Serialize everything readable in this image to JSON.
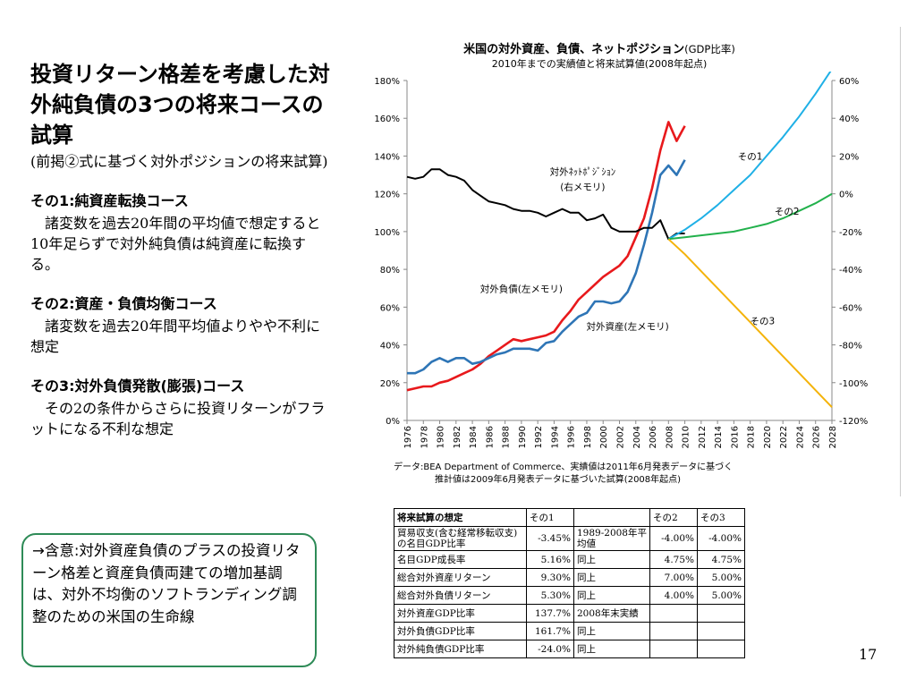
{
  "left": {
    "title": "投資リターン格差を考慮した対外純負債の3つの将来コースの試算",
    "subtitle": "(前掲②式に基づく対外ポジションの将来試算)",
    "courses": [
      {
        "heading": "その1:純資産転換コース",
        "text": "諸変数を過去20年間の平均値で想定すると10年足らずで対外純負債は純資産に転換する。"
      },
      {
        "heading": "その2:資産・負債均衡コース",
        "text": "諸変数を過去20年間平均値よりやや不利に想定"
      },
      {
        "heading": "その3:対外負債発散(膨張)コース",
        "text": "その2の条件からさらに投資リターンがフラットになる不利な想定"
      }
    ],
    "implication": "→含意:対外資産負債のプラスの投資リターン格差と資産負債両建ての増加基調は、対外不均衡のソフトランディング調整のための米国の生命線"
  },
  "chart_title": {
    "main": "米国の対外資産、負債、ネットポジション",
    "main_suffix": "(GDP比率)",
    "sub": "2010年までの実績値と将来試算値(2008年起点)"
  },
  "source": {
    "line1": "データ:BEA Department of Commerce、実績値は2011年6月発表データに基づく",
    "line2": "推計値は2009年6月発表データに基づいた試算(2008年起点)"
  },
  "chart_data": {
    "type": "line",
    "x_range": [
      1976,
      2028
    ],
    "x_ticks": [
      1976,
      1978,
      1980,
      1982,
      1984,
      1986,
      1988,
      1990,
      1992,
      1994,
      1996,
      1998,
      2000,
      2002,
      2004,
      2006,
      2008,
      2010,
      2012,
      2014,
      2016,
      2018,
      2020,
      2022,
      2024,
      2026,
      2028
    ],
    "left_axis": {
      "min": 0,
      "max": 180,
      "ticks": [
        0,
        20,
        40,
        60,
        80,
        100,
        120,
        140,
        160,
        180
      ],
      "unit": "%"
    },
    "right_axis": {
      "min": -120,
      "max": 60,
      "ticks": [
        -120,
        -100,
        -80,
        -60,
        -40,
        -20,
        0,
        20,
        40,
        60
      ],
      "unit": "%"
    },
    "series": [
      {
        "name": "対外負債(左メモリ)",
        "axis": "left",
        "color": "#e8191c",
        "x": [
          1976,
          1977,
          1978,
          1979,
          1980,
          1981,
          1982,
          1983,
          1984,
          1985,
          1986,
          1987,
          1988,
          1989,
          1990,
          1991,
          1992,
          1993,
          1994,
          1995,
          1996,
          1997,
          1998,
          1999,
          2000,
          2001,
          2002,
          2003,
          2004,
          2005,
          2006,
          2007,
          2008,
          2009,
          2010
        ],
        "y": [
          16,
          17,
          18,
          18,
          20,
          21,
          23,
          25,
          27,
          30,
          34,
          37,
          40,
          43,
          42,
          43,
          44,
          45,
          47,
          53,
          58,
          64,
          68,
          72,
          76,
          79,
          82,
          87,
          97,
          107,
          123,
          143,
          158,
          148,
          156
        ]
      },
      {
        "name": "対外資産(左メモリ)",
        "axis": "left",
        "color": "#2e75b6",
        "x": [
          1976,
          1977,
          1978,
          1979,
          1980,
          1981,
          1982,
          1983,
          1984,
          1985,
          1986,
          1987,
          1988,
          1989,
          1990,
          1991,
          1992,
          1993,
          1994,
          1995,
          1996,
          1997,
          1998,
          1999,
          2000,
          2001,
          2002,
          2003,
          2004,
          2005,
          2006,
          2007,
          2008,
          2009,
          2010
        ],
        "y": [
          25,
          25,
          27,
          31,
          33,
          31,
          33,
          33,
          30,
          31,
          33,
          35,
          36,
          38,
          38,
          38,
          37,
          41,
          42,
          47,
          51,
          55,
          57,
          63,
          63,
          62,
          63,
          68,
          78,
          93,
          110,
          130,
          135,
          130,
          138
        ]
      },
      {
        "name": "対外ネットポジション(右メモリ)",
        "axis": "right",
        "color": "#000000",
        "x": [
          1976,
          1977,
          1978,
          1979,
          1980,
          1981,
          1982,
          1983,
          1984,
          1985,
          1986,
          1987,
          1988,
          1989,
          1990,
          1991,
          1992,
          1993,
          1994,
          1995,
          1996,
          1997,
          1998,
          1999,
          2000,
          2001,
          2002,
          2003,
          2004,
          2005,
          2006,
          2007,
          2008,
          2009,
          2010
        ],
        "y": [
          9,
          8,
          9,
          13,
          13,
          10,
          9,
          7,
          2,
          -1,
          -4,
          -5,
          -6,
          -8,
          -9,
          -9,
          -10,
          -12,
          -10,
          -8,
          -10,
          -10,
          -14,
          -13,
          -11,
          -18,
          -20,
          -20,
          -20,
          -18,
          -18,
          -14,
          -24,
          -21,
          -21
        ]
      },
      {
        "name": "その1",
        "axis": "right",
        "color": "#1fb0e6",
        "x": [
          2008,
          2010,
          2012,
          2014,
          2016,
          2018,
          2020,
          2022,
          2024,
          2026,
          2028
        ],
        "y": [
          -24,
          -19,
          -13,
          -6,
          2,
          10,
          20,
          30,
          41,
          53,
          66
        ]
      },
      {
        "name": "その2",
        "axis": "right",
        "color": "#22b14c",
        "x": [
          2008,
          2010,
          2012,
          2014,
          2016,
          2018,
          2020,
          2022,
          2024,
          2026,
          2028
        ],
        "y": [
          -24,
          -23,
          -22,
          -21,
          -20,
          -18,
          -16,
          -13,
          -9,
          -5,
          0
        ]
      },
      {
        "name": "その3",
        "axis": "right",
        "color": "#f4b30a",
        "x": [
          2008,
          2010,
          2012,
          2014,
          2016,
          2018,
          2020,
          2022,
          2024,
          2026,
          2028
        ],
        "y": [
          -24,
          -32,
          -41,
          -50,
          -59,
          -68,
          -77,
          -86,
          -95,
          -104,
          -113
        ]
      }
    ],
    "annotations": [
      {
        "text": "対外ﾈｯﾄﾎﾟｼﾞｼｮﾝ",
        "x": 1997.5,
        "axis": "left",
        "y": 130
      },
      {
        "text": "(右メモリ)",
        "x": 1997.5,
        "axis": "left",
        "y": 122
      },
      {
        "text": "その1",
        "x": 2018,
        "axis": "left",
        "y": 138
      },
      {
        "text": "その2",
        "x": 2022.5,
        "axis": "left",
        "y": 109
      },
      {
        "text": "対外負債(左メモリ)",
        "x": 1990,
        "axis": "left",
        "y": 68
      },
      {
        "text": "その3",
        "x": 2019.5,
        "axis": "left",
        "y": 51
      },
      {
        "text": "対外資産(左メモリ)",
        "x": 2003,
        "axis": "left",
        "y": 48
      }
    ],
    "grid": false
  },
  "table": {
    "header": [
      "将来試算の想定",
      "その1",
      "",
      "その2",
      "その3"
    ],
    "rows": [
      [
        "貿易収支(含む経常移転収支)の名目GDP比率",
        "-3.45%",
        "1989-2008年平均値",
        "-4.00%",
        "-4.00%"
      ],
      [
        "名目GDP成長率",
        "5.16%",
        "同上",
        "4.75%",
        "4.75%"
      ],
      [
        "総合対外資産リターン",
        "9.30%",
        "同上",
        "7.00%",
        "5.00%"
      ],
      [
        "総合対外負債リターン",
        "5.30%",
        "同上",
        "4.00%",
        "5.00%"
      ],
      [
        "対外資産GDP比率",
        "137.7%",
        "2008年末実績",
        "",
        ""
      ],
      [
        "対外負債GDP比率",
        "161.7%",
        "同上",
        "",
        ""
      ],
      [
        "対外純負債GDP比率",
        "-24.0%",
        "同上",
        "",
        ""
      ]
    ]
  },
  "page_number": "17"
}
